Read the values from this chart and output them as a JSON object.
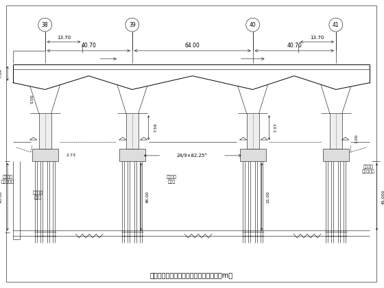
{
  "title": "特大桥连续梁平面图、纵断面图（单位：m）",
  "bg_color": "#ffffff",
  "line_color": "#000000",
  "fig_width": 5.6,
  "fig_height": 4.2,
  "dpi": 100,
  "pier_numbers": [
    "38",
    "39",
    "40",
    "41"
  ],
  "span_labels": [
    "40.70",
    "64.00",
    "40.70"
  ],
  "sub_dim_left": "13.70",
  "sub_dim_right": "13.70",
  "dim_7_84": "7.84",
  "dim_5_00": "5.00",
  "dim_7_59": "7.59",
  "dim_7_37": "7.37",
  "dim_2_73": "2.73",
  "dim_1_00": "1.00",
  "dim_43_00": "43.00",
  "dim_46_00": "46.00",
  "dim_21_00": "21.00",
  "dim_45_000": "45.000",
  "label_mid": "24/9×82.25°",
  "label_shigong_left": "施工期间\n地面处理线",
  "label_sheji_left": "设计地面\n开挖线",
  "label_sheji_mid": "设计地面\n开挖线",
  "label_shigong_right": "施工期间\n地面处理线"
}
